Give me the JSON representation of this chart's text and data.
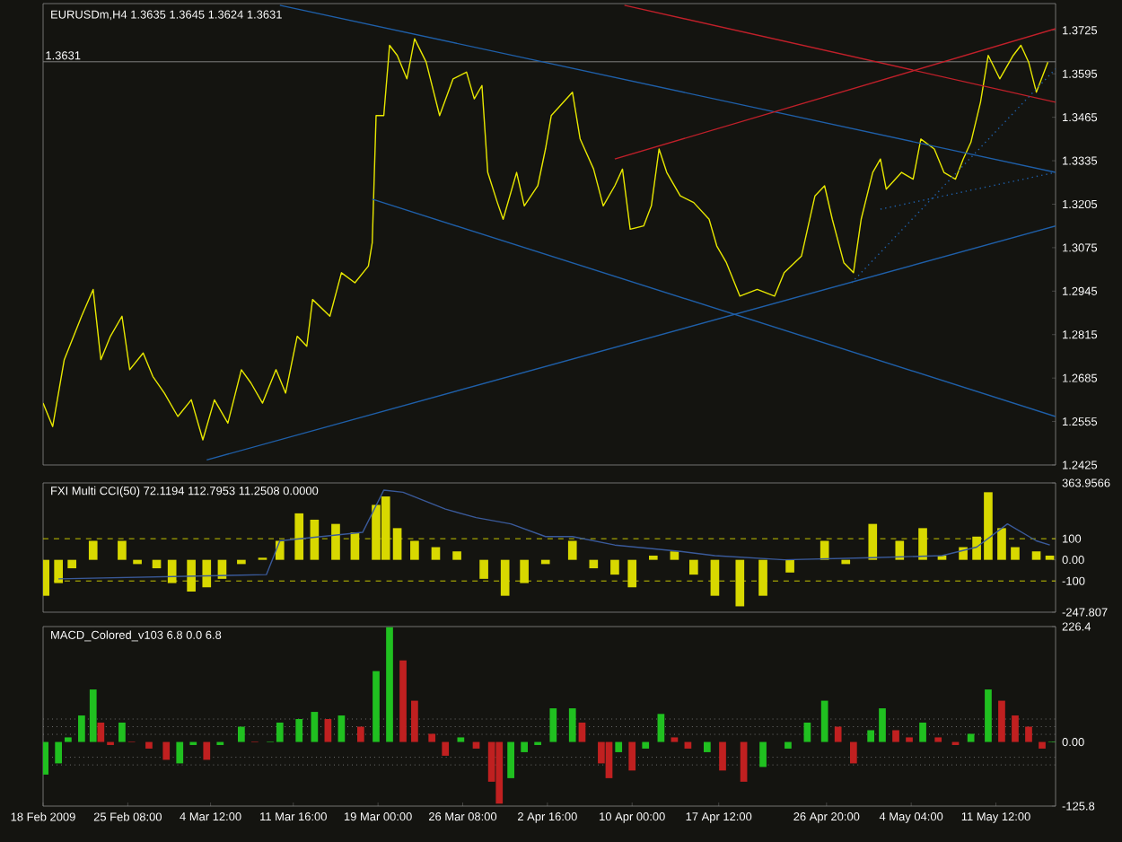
{
  "chart_data": [
    {
      "type": "line",
      "title": "EURUSDm,H4 1.3635 1.3645 1.3624 1.3631",
      "xlim": [
        "2009-02-18T00:00",
        "2009-05-16T16:00"
      ],
      "ylim": [
        1.2425,
        1.3805
      ],
      "tick_labels": "y",
      "yticks": [
        1.3725,
        1.3595,
        1.3465,
        1.3335,
        1.3205,
        1.3075,
        1.2945,
        1.2815,
        1.2685,
        1.2555,
        1.2425
      ],
      "ref_lines": [
        {
          "axis": "y",
          "value": 1.3631,
          "label": "1.3631",
          "color": "#808080",
          "line_style": "solid"
        }
      ],
      "series": [
        {
          "color": "#e8e800",
          "x": [
            "2009-02-18T00:00",
            "2009-02-18T20:00",
            "2009-02-19T20:00",
            "2009-02-21T08:00",
            "2009-02-22T08:00",
            "2009-02-23T00:00",
            "2009-02-23T20:00",
            "2009-02-24T20:00",
            "2009-02-25T12:00",
            "2009-02-26T16:00",
            "2009-02-27T12:00",
            "2009-02-28T12:00",
            "2009-03-01T16:00",
            "2009-03-02T20:00",
            "2009-03-03T20:00",
            "2009-03-04T20:00",
            "2009-03-06T00:00",
            "2009-03-07T04:00",
            "2009-03-08T00:00",
            "2009-03-09T00:00",
            "2009-03-10T04:00",
            "2009-03-11T00:00",
            "2009-03-12T00:00",
            "2009-03-12T20:00",
            "2009-03-13T08:00",
            "2009-03-14T20:00",
            "2009-03-15T20:00",
            "2009-03-17T00:00",
            "2009-03-18T04:00",
            "2009-03-18T12:00",
            "2009-03-18T20:00",
            "2009-03-19T12:00",
            "2009-03-20T00:00",
            "2009-03-20T16:00",
            "2009-03-21T12:00",
            "2009-03-22T04:00",
            "2009-03-23T04:00",
            "2009-03-24T08:00",
            "2009-03-25T12:00",
            "2009-03-26T16:00",
            "2009-03-27T08:00",
            "2009-03-28T00:00",
            "2009-03-28T12:00",
            "2009-03-29T08:00",
            "2009-03-29T20:00",
            "2009-03-31T00:00",
            "2009-03-31T16:00",
            "2009-04-01T20:00",
            "2009-04-02T12:00",
            "2009-04-03T00:00",
            "2009-04-04T20:00",
            "2009-04-05T12:00",
            "2009-04-06T16:00",
            "2009-04-07T12:00",
            "2009-04-08T12:00",
            "2009-04-09T04:00",
            "2009-04-09T20:00",
            "2009-04-11T00:00",
            "2009-04-11T16:00",
            "2009-04-12T08:00",
            "2009-04-13T00:00",
            "2009-04-14T04:00",
            "2009-04-15T08:00",
            "2009-04-16T16:00",
            "2009-04-17T08:00",
            "2009-04-18T04:00",
            "2009-04-19T08:00",
            "2009-04-20T20:00",
            "2009-04-22T08:00",
            "2009-04-23T04:00",
            "2009-04-24T16:00",
            "2009-04-25T20:00",
            "2009-04-26T16:00",
            "2009-04-27T08:00",
            "2009-04-28T08:00",
            "2009-04-29T04:00",
            "2009-04-29T20:00",
            "2009-04-30T20:00",
            "2009-05-01T12:00",
            "2009-05-02T00:00",
            "2009-05-03T08:00",
            "2009-05-04T08:00",
            "2009-05-05T00:00",
            "2009-05-06T04:00",
            "2009-05-07T00:00",
            "2009-05-08T00:00",
            "2009-05-08T16:00",
            "2009-05-09T08:00",
            "2009-05-10T04:00",
            "2009-05-10T20:00",
            "2009-05-11T20:00",
            "2009-05-13T00:00",
            "2009-05-13T16:00",
            "2009-05-14T08:00",
            "2009-05-15T00:00",
            "2009-05-16T00:00"
          ],
          "values": [
            1.261,
            1.254,
            1.274,
            1.287,
            1.295,
            1.274,
            1.281,
            1.287,
            1.271,
            1.276,
            1.269,
            1.264,
            1.257,
            1.262,
            1.25,
            1.262,
            1.255,
            1.271,
            1.267,
            1.261,
            1.271,
            1.264,
            1.281,
            1.278,
            1.292,
            1.287,
            1.3,
            1.297,
            1.302,
            1.309,
            1.347,
            1.347,
            1.368,
            1.365,
            1.358,
            1.37,
            1.363,
            1.347,
            1.358,
            1.36,
            1.352,
            1.356,
            1.33,
            1.321,
            1.316,
            1.33,
            1.32,
            1.326,
            1.337,
            1.347,
            1.354,
            1.34,
            1.331,
            1.32,
            1.326,
            1.331,
            1.313,
            1.314,
            1.32,
            1.337,
            1.33,
            1.323,
            1.321,
            1.316,
            1.308,
            1.303,
            1.293,
            1.295,
            1.293,
            1.3,
            1.305,
            1.323,
            1.326,
            1.316,
            1.303,
            1.3,
            1.316,
            1.33,
            1.334,
            1.325,
            1.33,
            1.328,
            1.34,
            1.337,
            1.33,
            1.328,
            1.334,
            1.339,
            1.351,
            1.365,
            1.358,
            1.365,
            1.368,
            1.363,
            1.354,
            1.363
          ]
        },
        {
          "type": "line",
          "color": "#1f5fa8",
          "x": [
            "2009-03-10T12:00",
            "2009-05-16T16:00"
          ],
          "values": [
            1.38,
            1.33
          ]
        },
        {
          "type": "line",
          "color": "#1f5fa8",
          "x": [
            "2009-03-18T12:00",
            "2009-05-16T16:00"
          ],
          "values": [
            1.322,
            1.257
          ]
        },
        {
          "type": "line",
          "color": "#1f5fa8",
          "x": [
            "2009-03-04T04:00",
            "2009-05-16T16:00"
          ],
          "values": [
            1.244,
            1.314
          ]
        },
        {
          "type": "line",
          "color": "#c0202a",
          "x": [
            "2009-04-08T12:00",
            "2009-05-16T16:00"
          ],
          "values": [
            1.334,
            1.373
          ]
        },
        {
          "type": "line",
          "color": "#c0202a",
          "x": [
            "2009-04-09T08:00",
            "2009-05-16T16:00"
          ],
          "values": [
            1.38,
            1.351
          ]
        },
        {
          "type": "line",
          "color": "#1f5fa8",
          "line_style": "dotted",
          "x": [
            "2009-04-29T00:00",
            "2009-05-16T16:00"
          ],
          "values": [
            1.297,
            1.361
          ]
        },
        {
          "type": "line",
          "color": "#1f5fa8",
          "line_style": "dotted",
          "x": [
            "2009-05-01T12:00",
            "2009-05-16T16:00"
          ],
          "values": [
            1.319,
            1.33
          ]
        }
      ]
    },
    {
      "type": "bar",
      "title": "FXI Multi CCI(50) 72.1194 112.7953 11.2508 0.0000",
      "xlim": [
        "2009-02-18T00:00",
        "2009-05-16T16:00"
      ],
      "ylim": [
        -247.807,
        363.9566
      ],
      "tick_labels": "y",
      "yticks": [
        363.9566,
        100,
        {
          "value": 0,
          "label": "0.00"
        },
        -100,
        -247.807
      ],
      "ref_lines": [
        {
          "axis": "y",
          "value": 100,
          "color": "#c8c800",
          "line_style": "dashed"
        },
        {
          "axis": "y",
          "value": -100,
          "color": "#c8c800",
          "line_style": "dashed"
        }
      ],
      "series": [
        {
          "color": "#d8d800",
          "x": [
            "2009-02-18T04:00",
            "2009-02-19T08:00",
            "2009-02-20T12:00",
            "2009-02-22T08:00",
            "2009-02-23T12:00",
            "2009-02-24T20:00",
            "2009-02-26T04:00",
            "2009-02-27T20:00",
            "2009-03-01T04:00",
            "2009-03-02T20:00",
            "2009-03-04T04:00",
            "2009-03-05T12:00",
            "2009-03-07T04:00",
            "2009-03-09T00:00",
            "2009-03-10T12:00",
            "2009-03-12T04:00",
            "2009-03-13T12:00",
            "2009-03-15T08:00",
            "2009-03-17T00:00",
            "2009-03-18T20:00",
            "2009-03-19T16:00",
            "2009-03-20T16:00",
            "2009-03-22T04:00",
            "2009-03-24T00:00",
            "2009-03-25T20:00",
            "2009-03-28T04:00",
            "2009-03-30T00:00",
            "2009-03-31T16:00",
            "2009-04-02T12:00",
            "2009-04-04T20:00",
            "2009-04-06T16:00",
            "2009-04-08T12:00",
            "2009-04-10T00:00",
            "2009-04-11T20:00",
            "2009-04-13T16:00",
            "2009-04-15T08:00",
            "2009-04-17T04:00",
            "2009-04-19T08:00",
            "2009-04-21T08:00",
            "2009-04-23T16:00",
            "2009-04-26T16:00",
            "2009-04-28T12:00",
            "2009-04-30T20:00",
            "2009-05-03T04:00",
            "2009-05-05T04:00",
            "2009-05-06T20:00",
            "2009-05-08T16:00",
            "2009-05-09T20:00",
            "2009-05-10T20:00",
            "2009-05-12T00:00",
            "2009-05-13T04:00",
            "2009-05-15T00:00",
            "2009-05-16T04:00"
          ],
          "values": [
            -170,
            -110,
            -40,
            90,
            0,
            90,
            -20,
            -40,
            -110,
            -150,
            -130,
            -90,
            -20,
            10,
            90,
            220,
            190,
            170,
            130,
            260,
            300,
            150,
            90,
            60,
            40,
            -90,
            -170,
            -110,
            -20,
            90,
            -40,
            -70,
            -130,
            20,
            40,
            -70,
            -170,
            -220,
            -170,
            -60,
            90,
            -20,
            170,
            90,
            150,
            20,
            60,
            110,
            320,
            150,
            60,
            40,
            20
          ]
        },
        {
          "type": "line",
          "color": "#3a5a9a",
          "x": [
            "2009-02-19T08:00",
            "2009-03-09T08:00",
            "2009-03-10T12:00",
            "2009-03-17T16:00",
            "2009-03-19T12:00",
            "2009-03-21T04:00",
            "2009-03-24T20:00",
            "2009-03-27T12:00",
            "2009-03-30T12:00",
            "2009-04-02T12:00",
            "2009-04-04T20:00",
            "2009-04-08T12:00",
            "2009-04-14T04:00",
            "2009-04-17T04:00",
            "2009-04-23T04:00",
            "2009-04-30T20:00",
            "2009-05-06T20:00",
            "2009-05-09T20:00",
            "2009-05-12T12:00",
            "2009-05-15T00:00",
            "2009-05-16T04:00"
          ],
          "values": [
            -90,
            -70,
            90,
            130,
            330,
            320,
            240,
            200,
            170,
            110,
            110,
            70,
            40,
            20,
            0,
            10,
            20,
            60,
            170,
            90,
            70
          ]
        }
      ]
    },
    {
      "type": "bar",
      "title": "MACD_Colored_v103 6.8 0.0 6.8",
      "xlim": [
        "2009-02-18T00:00",
        "2009-05-16T16:00"
      ],
      "ylim": [
        -125.8,
        226.4
      ],
      "xticks": [
        {
          "value": "2009-02-18T00:00",
          "label": "18 Feb 2009"
        },
        {
          "value": "2009-02-25T08:00",
          "label": "25 Feb 08:00"
        },
        {
          "value": "2009-03-04T12:00",
          "label": "4 Mar 12:00"
        },
        {
          "value": "2009-03-11T16:00",
          "label": "11 Mar 16:00"
        },
        {
          "value": "2009-03-19T00:00",
          "label": "19 Mar 00:00"
        },
        {
          "value": "2009-03-26T08:00",
          "label": "26 Mar 08:00"
        },
        {
          "value": "2009-04-02T16:00",
          "label": "2 Apr 16:00"
        },
        {
          "value": "2009-04-10T00:00",
          "label": "10 Apr 00:00"
        },
        {
          "value": "2009-04-17T12:00",
          "label": "17 Apr 12:00"
        },
        {
          "value": "2009-04-26T20:00",
          "label": "26 Apr 20:00"
        },
        {
          "value": "2009-05-04T04:00",
          "label": "4 May 04:00"
        },
        {
          "value": "2009-05-11T12:00",
          "label": "11 May 12:00"
        }
      ],
      "yticks": [
        226.4,
        {
          "value": 0,
          "label": "0.00"
        },
        -125.8
      ],
      "ref_lines": [
        {
          "axis": "y",
          "value": 45,
          "color": "#707070",
          "line_style": "dotted"
        },
        {
          "axis": "y",
          "value": 30,
          "color": "#707070",
          "line_style": "dotted"
        },
        {
          "axis": "y",
          "value": 15,
          "color": "#707070",
          "line_style": "dotted"
        },
        {
          "axis": "y",
          "value": -30,
          "color": "#707070",
          "line_style": "dotted"
        },
        {
          "axis": "y",
          "value": -45,
          "color": "#707070",
          "line_style": "dotted"
        }
      ],
      "series": [
        {
          "x": [
            "2009-02-18T04:00",
            "2009-02-19T08:00",
            "2009-02-20T04:00",
            "2009-02-21T08:00",
            "2009-02-22T08:00",
            "2009-02-23T00:00",
            "2009-02-23T20:00",
            "2009-02-24T20:00",
            "2009-02-25T16:00",
            "2009-02-27T04:00",
            "2009-02-28T16:00",
            "2009-03-01T20:00",
            "2009-03-03T00:00",
            "2009-03-04T04:00",
            "2009-03-05T08:00",
            "2009-03-07T04:00",
            "2009-03-08T08:00",
            "2009-03-09T16:00",
            "2009-03-10T12:00",
            "2009-03-12T04:00",
            "2009-03-13T12:00",
            "2009-03-14T16:00",
            "2009-03-15T20:00",
            "2009-03-17T12:00",
            "2009-03-18T20:00",
            "2009-03-20T00:00",
            "2009-03-21T04:00",
            "2009-03-22T04:00",
            "2009-03-23T16:00",
            "2009-03-24T20:00",
            "2009-03-26T04:00",
            "2009-03-27T12:00",
            "2009-03-28T20:00",
            "2009-03-29T12:00",
            "2009-03-30T12:00",
            "2009-03-31T16:00",
            "2009-04-01T20:00",
            "2009-04-03T04:00",
            "2009-04-04T20:00",
            "2009-04-05T16:00",
            "2009-04-07T08:00",
            "2009-04-08T00:00",
            "2009-04-08T20:00",
            "2009-04-10T00:00",
            "2009-04-11T04:00",
            "2009-04-12T12:00",
            "2009-04-13T16:00",
            "2009-04-14T20:00",
            "2009-04-16T12:00",
            "2009-04-17T20:00",
            "2009-04-19T16:00",
            "2009-04-21T08:00",
            "2009-04-23T12:00",
            "2009-04-25T04:00",
            "2009-04-26T16:00",
            "2009-04-27T20:00",
            "2009-04-29T04:00",
            "2009-04-30T16:00",
            "2009-05-01T16:00",
            "2009-05-02T20:00",
            "2009-05-04T00:00",
            "2009-05-05T04:00",
            "2009-05-06T12:00",
            "2009-05-08T00:00",
            "2009-05-09T08:00",
            "2009-05-10T20:00",
            "2009-05-12T00:00",
            "2009-05-13T04:00",
            "2009-05-14T08:00",
            "2009-05-15T12:00",
            "2009-05-16T08:00"
          ],
          "values": [
            -64,
            -42,
            9,
            52,
            103,
            38,
            -6,
            38,
            1,
            -13,
            -35,
            -42,
            -6,
            -35,
            -6,
            30,
            1,
            1,
            38,
            45,
            59,
            45,
            52,
            30,
            139,
            225,
            160,
            81,
            16,
            -27,
            9,
            -13,
            -78,
            -121,
            -71,
            -20,
            -6,
            66,
            66,
            38,
            -42,
            -71,
            -20,
            -56,
            -13,
            55,
            9,
            -13,
            -20,
            -56,
            -78,
            -49,
            -13,
            38,
            81,
            30,
            -42,
            23,
            66,
            23,
            9,
            38,
            9,
            -6,
            16,
            103,
            81,
            52,
            30,
            -13,
            1
          ],
          "colors": [
            "#20c020",
            "#20c020",
            "#20c020",
            "#20c020",
            "#20c020",
            "#c02020",
            "#c02020",
            "#20c020",
            "#c02020",
            "#c02020",
            "#c02020",
            "#20c020",
            "#20c020",
            "#c02020",
            "#20c020",
            "#20c020",
            "#c02020",
            "#20c020",
            "#20c020",
            "#20c020",
            "#20c020",
            "#c02020",
            "#20c020",
            "#c02020",
            "#20c020",
            "#20c020",
            "#c02020",
            "#c02020",
            "#c02020",
            "#c02020",
            "#20c020",
            "#c02020",
            "#c02020",
            "#c02020",
            "#20c020",
            "#20c020",
            "#20c020",
            "#20c020",
            "#20c020",
            "#c02020",
            "#c02020",
            "#c02020",
            "#20c020",
            "#c02020",
            "#20c020",
            "#20c020",
            "#c02020",
            "#c02020",
            "#20c020",
            "#c02020",
            "#c02020",
            "#20c020",
            "#20c020",
            "#20c020",
            "#20c020",
            "#c02020",
            "#c02020",
            "#20c020",
            "#20c020",
            "#c02020",
            "#c02020",
            "#20c020",
            "#c02020",
            "#c02020",
            "#20c020",
            "#20c020",
            "#c02020",
            "#c02020",
            "#c02020",
            "#c02020",
            "#20c020"
          ]
        }
      ]
    }
  ]
}
